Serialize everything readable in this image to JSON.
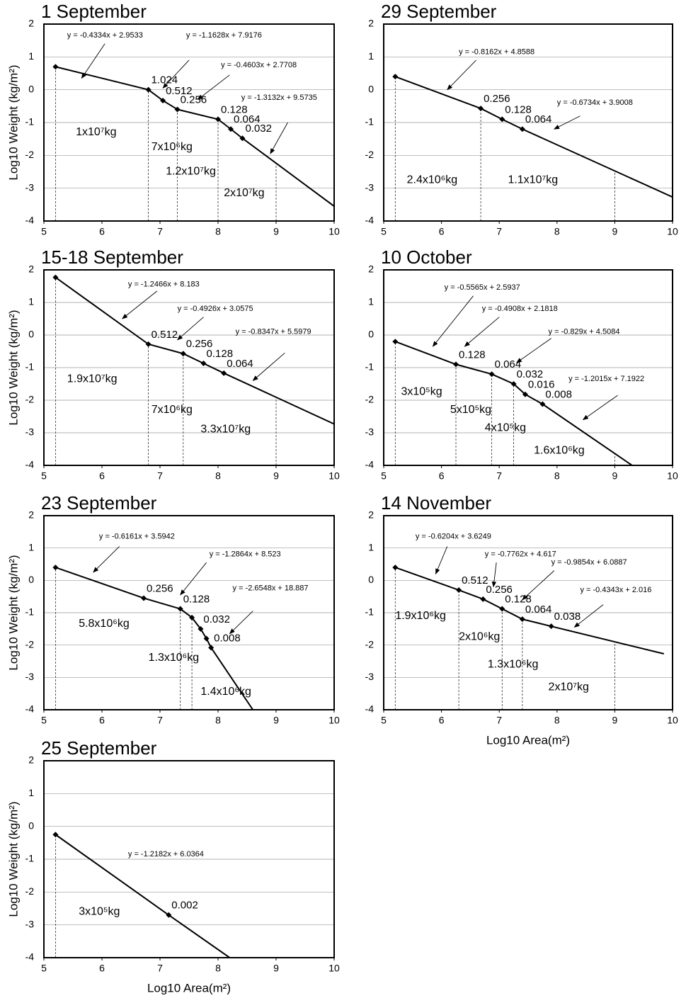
{
  "chart_data": [
    {
      "type": "line",
      "title": "1 September",
      "ylabel": "Log10 Weight (kg/m²)",
      "color": "#000000",
      "xlim": [
        5,
        10
      ],
      "ylim": [
        -4,
        2
      ],
      "xticks": [
        5,
        6,
        7,
        8,
        9,
        10
      ],
      "yticks": [
        -4,
        -3,
        -2,
        -1,
        0,
        1,
        2
      ],
      "grid": true,
      "x": [
        5.2,
        6.8,
        7.05,
        7.3,
        8.0,
        8.22,
        8.42,
        10
      ],
      "values": [
        0.7,
        0.0,
        -0.33,
        -0.6,
        -0.9,
        -1.2,
        -1.48,
        -3.55
      ],
      "point_labels": [
        null,
        "1.024",
        "0.512",
        "0.256",
        "0.128",
        "0.064",
        "0.032",
        null
      ],
      "dashed_x": [
        5.2,
        6.8,
        7.3,
        8.0,
        9.0
      ],
      "equations": [
        "y = -0.4334x + 2.9533",
        "y = -1.1628x + 7.9176",
        "y = -0.4603x + 2.7708",
        "y = -1.3132x + 9.5735"
      ],
      "mass_labels": [
        "1x10⁷kg",
        "7x10⁶kg",
        "1.2x10⁷kg",
        "2x10⁷kg"
      ]
    },
    {
      "type": "line",
      "title": "29 September",
      "color": "#000000",
      "xlim": [
        5,
        10
      ],
      "ylim": [
        -4,
        2
      ],
      "xticks": [
        5,
        6,
        7,
        8,
        9,
        10
      ],
      "yticks": [
        -4,
        -3,
        -2,
        -1,
        0,
        1,
        2
      ],
      "grid": true,
      "x": [
        5.2,
        6.68,
        7.05,
        7.4,
        10
      ],
      "values": [
        0.4,
        -0.57,
        -0.9,
        -1.2,
        -3.27
      ],
      "point_labels": [
        null,
        "0.256",
        "0.128",
        "0.064",
        null
      ],
      "dashed_x": [
        5.2,
        6.68,
        9.0
      ],
      "equations": [
        "y = -0.8162x + 4.8588",
        "y = -0.6734x + 3.9008"
      ],
      "mass_labels": [
        "2.4x10⁶kg",
        "1.1x10⁷kg"
      ]
    },
    {
      "type": "line",
      "title": "15-18 September",
      "ylabel": "Log10 Weight (kg/m²)",
      "color": "#000000",
      "xlim": [
        5,
        10
      ],
      "ylim": [
        -4,
        2
      ],
      "xticks": [
        5,
        6,
        7,
        8,
        9,
        10
      ],
      "yticks": [
        -4,
        -3,
        -2,
        -1,
        0,
        1,
        2
      ],
      "grid": true,
      "x": [
        5.2,
        6.8,
        7.4,
        7.75,
        8.1,
        10
      ],
      "values": [
        1.77,
        -0.28,
        -0.57,
        -0.87,
        -1.17,
        -2.73
      ],
      "point_labels": [
        null,
        "0.512",
        "0.256",
        "0.128",
        "0.064",
        null
      ],
      "dashed_x": [
        5.2,
        6.8,
        7.4,
        9.0
      ],
      "equations": [
        "y = -1.2466x + 8.183",
        "y = -0.4926x + 3.0575",
        "y = -0.8347x + 5.5979"
      ],
      "mass_labels": [
        "1.9x10⁷kg",
        "7x10⁶kg",
        "3.3x10⁷kg"
      ]
    },
    {
      "type": "line",
      "title": "10 October",
      "color": "#000000",
      "xlim": [
        5,
        10
      ],
      "ylim": [
        -4,
        2
      ],
      "xticks": [
        5,
        6,
        7,
        8,
        9,
        10
      ],
      "yticks": [
        -4,
        -3,
        -2,
        -1,
        0,
        1,
        2
      ],
      "grid": true,
      "x": [
        5.2,
        6.25,
        6.87,
        7.25,
        7.45,
        7.75,
        9.3
      ],
      "values": [
        -0.2,
        -0.9,
        -1.2,
        -1.5,
        -1.82,
        -2.12,
        -4.0
      ],
      "point_labels": [
        null,
        "0.128",
        "0.064",
        "0.032",
        "0.016",
        "0.008",
        null
      ],
      "dashed_x": [
        5.2,
        6.25,
        6.87,
        7.25,
        9.0
      ],
      "equations": [
        "y = -0.5565x + 2.5937",
        "y = -0.4908x + 2.1818",
        "y = -0.829x + 4.5084",
        "y = -1.2015x + 7.1922"
      ],
      "mass_labels": [
        "3x10⁵kg",
        "5x10⁵kg",
        "4x10⁵kg",
        "1.6x10⁶kg"
      ]
    },
    {
      "type": "line",
      "title": "23 September",
      "ylabel": "Log10 Weight (kg/m²)",
      "color": "#000000",
      "xlim": [
        5,
        10
      ],
      "ylim": [
        -4,
        2
      ],
      "xticks": [
        5,
        6,
        7,
        8,
        9,
        10
      ],
      "yticks": [
        -4,
        -3,
        -2,
        -1,
        0,
        1,
        2
      ],
      "grid": true,
      "x": [
        5.2,
        6.72,
        7.35,
        7.55,
        7.7,
        7.8,
        7.88,
        8.6
      ],
      "values": [
        0.4,
        -0.55,
        -0.88,
        -1.15,
        -1.5,
        -1.8,
        -2.08,
        -4.0
      ],
      "point_labels": [
        null,
        "0.256",
        "0.128",
        null,
        "0.032",
        null,
        "0.008",
        null
      ],
      "dashed_x": [
        5.2,
        7.35,
        7.55
      ],
      "equations": [
        "y = -0.6161x + 3.5942",
        "y = -1.2864x + 8.523",
        "y = -2.6548x + 18.887"
      ],
      "mass_labels": [
        "5.8x10⁶kg",
        "1.3x10⁶kg",
        "1.4x10⁶kg"
      ]
    },
    {
      "type": "line",
      "title": "14 November",
      "xlabel": "Log10 Area(m²)",
      "color": "#000000",
      "xlim": [
        5,
        10
      ],
      "ylim": [
        -4,
        2
      ],
      "xticks": [
        5,
        6,
        7,
        8,
        9,
        10
      ],
      "yticks": [
        -4,
        -3,
        -2,
        -1,
        0,
        1,
        2
      ],
      "grid": true,
      "x": [
        5.2,
        6.3,
        6.72,
        7.05,
        7.4,
        7.9,
        9.85
      ],
      "values": [
        0.4,
        -0.3,
        -0.58,
        -0.88,
        -1.2,
        -1.42,
        -2.27
      ],
      "point_labels": [
        null,
        "0.512",
        "0.256",
        "0.128",
        "0.064",
        "0.038",
        null
      ],
      "dashed_x": [
        5.2,
        6.3,
        7.05,
        7.4,
        9.0
      ],
      "equations": [
        "y = -0.6204x + 3.6249",
        "y = -0.7762x + 4.617",
        "y = -0.9854x + 6.0887",
        "y = -0.4343x + 2.016"
      ],
      "mass_labels": [
        "1.9x10⁶kg",
        "2x10⁶kg",
        "1.3x10⁶kg",
        "2x10⁷kg"
      ]
    },
    {
      "type": "line",
      "title": "25 September",
      "ylabel": "Log10 Weight (kg/m²)",
      "xlabel": "Log10 Area(m²)",
      "color": "#000000",
      "xlim": [
        5,
        10
      ],
      "ylim": [
        -4,
        2
      ],
      "xticks": [
        5,
        6,
        7,
        8,
        9,
        10
      ],
      "yticks": [
        -4,
        -3,
        -2,
        -1,
        0,
        1,
        2
      ],
      "grid": true,
      "x": [
        5.2,
        7.15,
        8.2
      ],
      "values": [
        -0.25,
        -2.7,
        -4.0
      ],
      "point_labels": [
        null,
        "0.002",
        null
      ],
      "dashed_x": [
        5.2
      ],
      "equations": [
        "y = -1.2182x + 6.0364"
      ],
      "mass_labels": [
        "3x10⁵kg"
      ]
    }
  ]
}
